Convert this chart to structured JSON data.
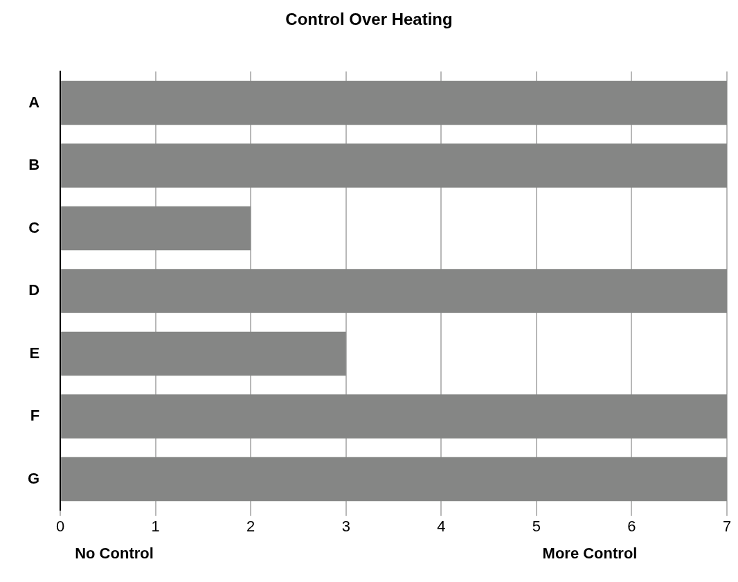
{
  "chart_data": {
    "type": "bar",
    "orientation": "horizontal",
    "title": "Control Over Heating",
    "categories": [
      "A",
      "B",
      "C",
      "D",
      "E",
      "F",
      "G"
    ],
    "values": [
      7,
      7,
      2,
      7,
      3,
      7,
      7
    ],
    "color": "#858685",
    "xlim": [
      0,
      7
    ],
    "xticks": [
      0,
      1,
      2,
      3,
      4,
      5,
      6,
      7
    ],
    "grid": "x",
    "legend": false,
    "annotations": [
      "No Control",
      "More Control"
    ]
  }
}
